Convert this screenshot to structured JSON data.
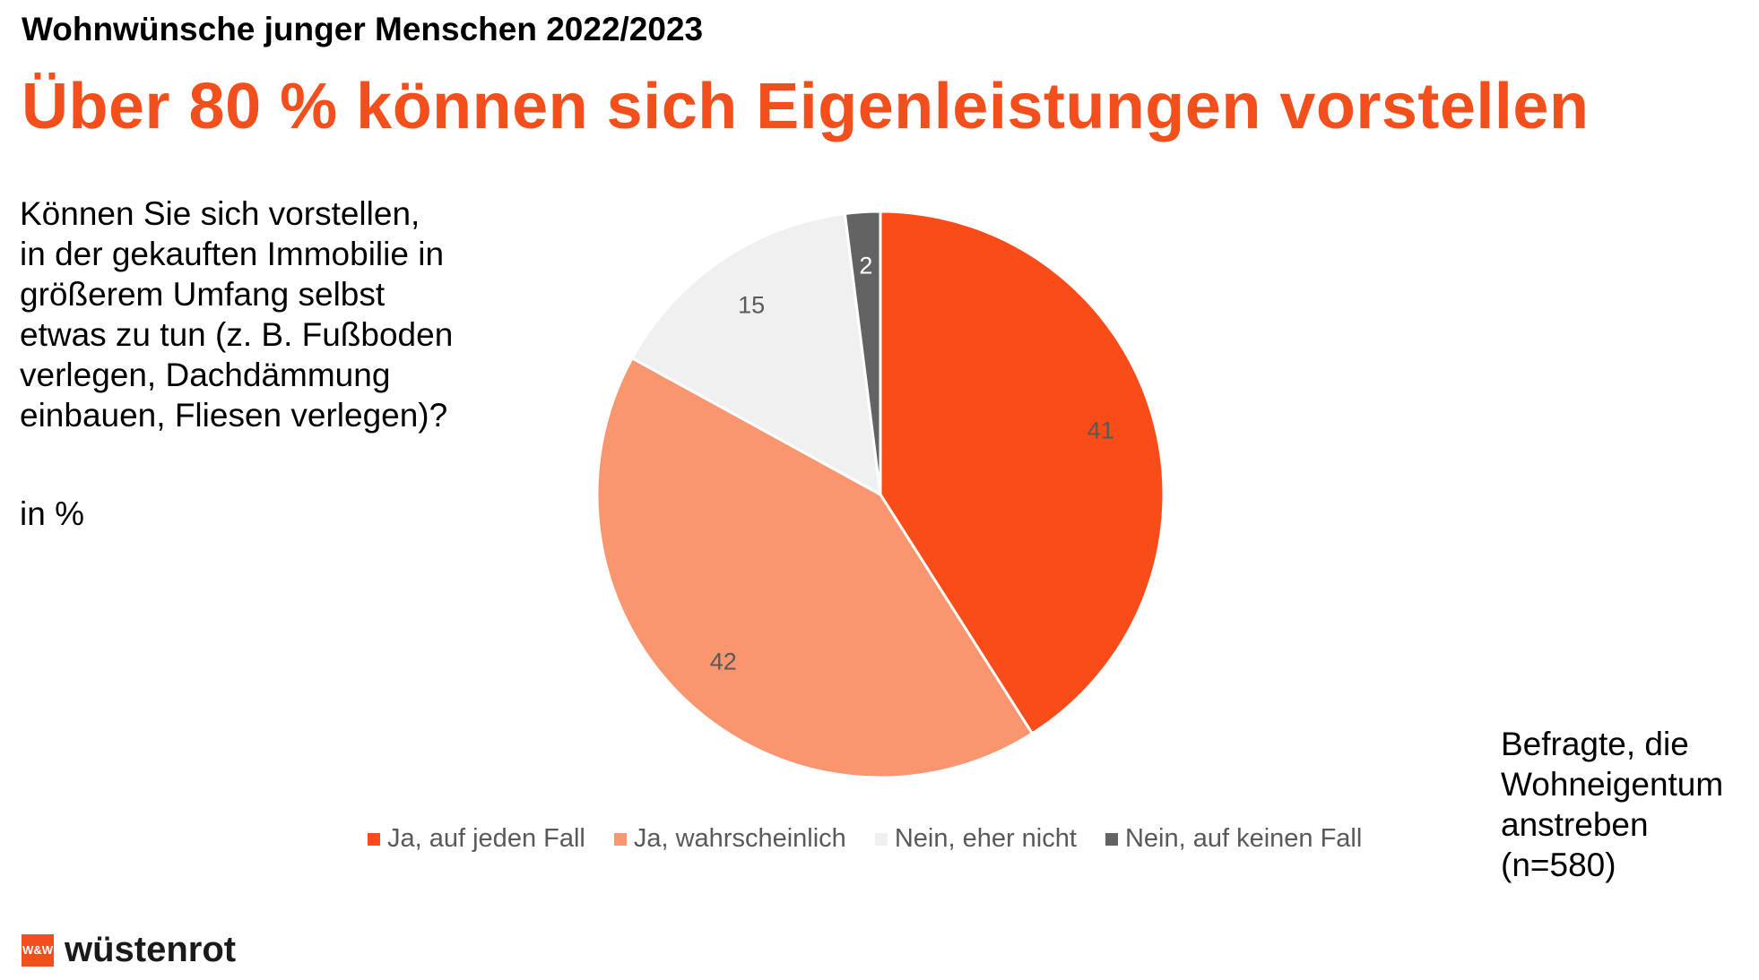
{
  "kicker": "Wohnwünsche junger Menschen 2022/2023",
  "headline": "Über 80 % können sich Eigenleistungen vorstellen",
  "question_lines": [
    "Können Sie sich vorstellen,",
    "in der gekauften Immobilie in",
    "größerem Umfang selbst",
    "etwas zu tun (z. B. Fußboden",
    "verlegen, Dachdämmung",
    "einbauen, Fliesen verlegen)?"
  ],
  "unit": "in %",
  "sample_lines": [
    "Befragte, die",
    "Wohneigentum",
    "anstreben",
    "(n=580)"
  ],
  "logo": {
    "mark": "W&W",
    "text": "wüstenrot"
  },
  "chart_data": {
    "type": "pie",
    "categories": [
      "Ja, auf jeden Fall",
      "Ja, wahrscheinlich",
      "Nein, eher nicht",
      "Nein, auf keinen Fall"
    ],
    "values": [
      41,
      42,
      15,
      2
    ],
    "colors": [
      "#f94c18",
      "#f9956f",
      "#f0f0f0",
      "#636363"
    ],
    "label_colors": [
      "#595959",
      "#595959",
      "#595959",
      "#ffffff"
    ],
    "start_angle": "12 o'clock",
    "direction": "clockwise",
    "legend_position": "bottom"
  }
}
